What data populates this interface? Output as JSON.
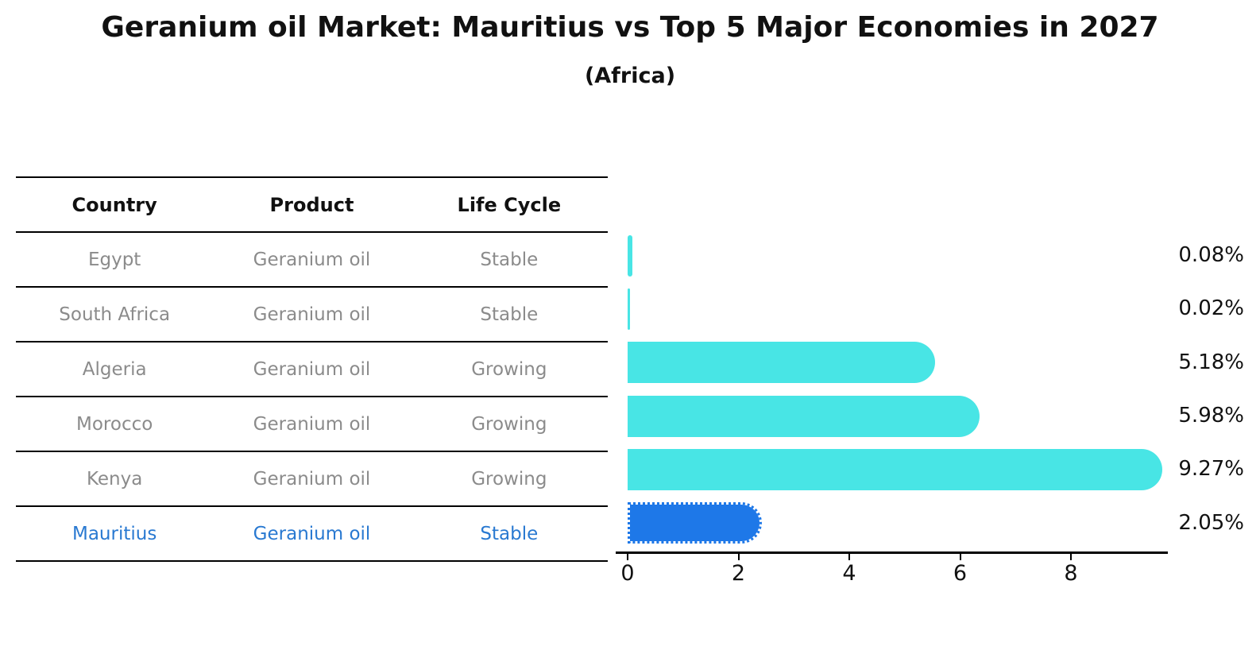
{
  "title": "Geranium oil Market: Mauritius vs Top 5 Major Economies in 2027",
  "subtitle": "(Africa)",
  "table": {
    "headers": [
      "Country",
      "Product",
      "Life Cycle"
    ],
    "rows": [
      {
        "country": "Egypt",
        "product": "Geranium oil",
        "life_cycle": "Stable",
        "highlight": false
      },
      {
        "country": "South Africa",
        "product": "Geranium oil",
        "life_cycle": "Stable",
        "highlight": false
      },
      {
        "country": "Algeria",
        "product": "Geranium oil",
        "life_cycle": "Growing",
        "highlight": false
      },
      {
        "country": "Morocco",
        "product": "Geranium oil",
        "life_cycle": "Growing",
        "highlight": false
      },
      {
        "country": "Kenya",
        "product": "Geranium oil",
        "life_cycle": "Growing",
        "highlight": false
      },
      {
        "country": "Mauritius",
        "product": "Geranium oil",
        "life_cycle": "Stable",
        "highlight": true
      }
    ]
  },
  "chart_data": {
    "type": "bar",
    "orientation": "horizontal",
    "title": "Geranium oil Market: Mauritius vs Top 5 Major Economies in 2027",
    "subtitle": "(Africa)",
    "categories": [
      "Egypt",
      "South Africa",
      "Algeria",
      "Morocco",
      "Kenya",
      "Mauritius"
    ],
    "values": [
      0.08,
      0.02,
      5.18,
      5.98,
      9.27,
      2.05
    ],
    "value_labels": [
      "0.08%",
      "0.02%",
      "5.18%",
      "5.98%",
      "9.27%",
      "2.05%"
    ],
    "highlight_index": 5,
    "x_ticks": [
      0,
      2,
      4,
      6,
      8
    ],
    "x_tick_labels": [
      "0",
      "2",
      "4",
      "6",
      "8"
    ],
    "xlim": [
      0,
      9.75
    ],
    "grid": false,
    "legend": "none"
  },
  "colors": {
    "bar": "#48E5E5",
    "highlight_bar": "#1E78E8",
    "row_text": "#8B8B8B",
    "highlight_text": "#2979D1",
    "axis": "#000000",
    "label_text": "#111111"
  }
}
